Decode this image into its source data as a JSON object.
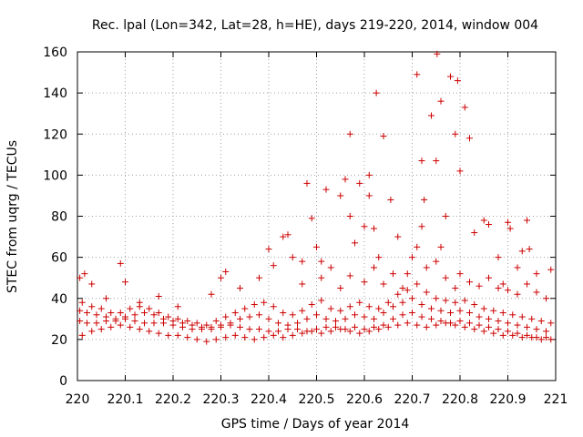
{
  "chart_data": {
    "type": "scatter",
    "title": "Rec. lpal (Lon=342, Lat=28, h=HE), days 219-220, 2014, window 004",
    "xlabel": "GPS time / Days of year 2014",
    "ylabel": "STEC from uqrg / TECUs",
    "xlim": [
      220,
      221
    ],
    "ylim": [
      0,
      160
    ],
    "xticks": [
      "220",
      "220.1",
      "220.2",
      "220.3",
      "220.4",
      "220.5",
      "220.6",
      "220.7",
      "220.8",
      "220.9",
      "221"
    ],
    "yticks": [
      "0",
      "20",
      "40",
      "60",
      "80",
      "100",
      "120",
      "140",
      "160"
    ],
    "grid": true,
    "marker": "+",
    "color": "#cc0000",
    "series": [
      {
        "points": [
          [
            220.005,
            29
          ],
          [
            220.02,
            28
          ],
          [
            220.04,
            28
          ],
          [
            220.06,
            29
          ],
          [
            220.08,
            29
          ],
          [
            220.1,
            30
          ],
          [
            220.12,
            29
          ],
          [
            220.14,
            28
          ],
          [
            220.16,
            28
          ],
          [
            220.18,
            28
          ],
          [
            220.2,
            27
          ],
          [
            220.22,
            26
          ],
          [
            220.24,
            25
          ],
          [
            220.26,
            25
          ],
          [
            220.28,
            26
          ],
          [
            220.3,
            26
          ],
          [
            220.32,
            27
          ],
          [
            220.34,
            26
          ],
          [
            220.36,
            25
          ],
          [
            220.38,
            25
          ],
          [
            220.4,
            24
          ],
          [
            220.42,
            24
          ],
          [
            220.44,
            25
          ],
          [
            220.46,
            25
          ],
          [
            220.48,
            24
          ],
          [
            220.5,
            25
          ],
          [
            220.52,
            26
          ],
          [
            220.54,
            26
          ],
          [
            220.56,
            25
          ],
          [
            220.58,
            26
          ],
          [
            220.6,
            25
          ],
          [
            220.62,
            26
          ],
          [
            220.64,
            27
          ],
          [
            220.66,
            30
          ],
          [
            220.68,
            32
          ],
          [
            220.7,
            33
          ],
          [
            220.72,
            31
          ],
          [
            220.74,
            30
          ],
          [
            220.76,
            29
          ],
          [
            220.78,
            28
          ],
          [
            220.8,
            29
          ],
          [
            220.82,
            28
          ],
          [
            220.84,
            27
          ],
          [
            220.86,
            26
          ],
          [
            220.88,
            25
          ],
          [
            220.9,
            24
          ],
          [
            220.92,
            23
          ],
          [
            220.94,
            22
          ],
          [
            220.96,
            21
          ],
          [
            220.98,
            21
          ],
          [
            220.005,
            34
          ],
          [
            220.02,
            33
          ],
          [
            220.04,
            32
          ],
          [
            220.06,
            31
          ],
          [
            220.08,
            30
          ],
          [
            220.1,
            31
          ],
          [
            220.12,
            32
          ],
          [
            220.14,
            33
          ],
          [
            220.16,
            32
          ],
          [
            220.18,
            30
          ],
          [
            220.2,
            29
          ],
          [
            220.22,
            28
          ],
          [
            220.24,
            27
          ],
          [
            220.26,
            26
          ],
          [
            220.28,
            25
          ],
          [
            220.3,
            27
          ],
          [
            220.32,
            28
          ],
          [
            220.34,
            30
          ],
          [
            220.36,
            31
          ],
          [
            220.38,
            32
          ],
          [
            220.4,
            30
          ],
          [
            220.42,
            28
          ],
          [
            220.44,
            27
          ],
          [
            220.46,
            28
          ],
          [
            220.48,
            30
          ],
          [
            220.5,
            32
          ],
          [
            220.52,
            30
          ],
          [
            220.54,
            29
          ],
          [
            220.56,
            30
          ],
          [
            220.58,
            32
          ],
          [
            220.6,
            31
          ],
          [
            220.62,
            30
          ],
          [
            220.64,
            33
          ],
          [
            220.66,
            36
          ],
          [
            220.68,
            38
          ],
          [
            220.7,
            40
          ],
          [
            220.72,
            37
          ],
          [
            220.74,
            35
          ],
          [
            220.76,
            34
          ],
          [
            220.78,
            33
          ],
          [
            220.8,
            34
          ],
          [
            220.82,
            33
          ],
          [
            220.84,
            31
          ],
          [
            220.86,
            30
          ],
          [
            220.88,
            29
          ],
          [
            220.9,
            28
          ],
          [
            220.92,
            27
          ],
          [
            220.94,
            26
          ],
          [
            220.96,
            25
          ],
          [
            220.98,
            24
          ],
          [
            220.01,
            38
          ],
          [
            220.03,
            36
          ],
          [
            220.05,
            35
          ],
          [
            220.07,
            33
          ],
          [
            220.09,
            33
          ],
          [
            220.11,
            35
          ],
          [
            220.13,
            36
          ],
          [
            220.15,
            35
          ],
          [
            220.17,
            33
          ],
          [
            220.19,
            31
          ],
          [
            220.21,
            30
          ],
          [
            220.23,
            29
          ],
          [
            220.25,
            28
          ],
          [
            220.27,
            27
          ],
          [
            220.29,
            29
          ],
          [
            220.31,
            31
          ],
          [
            220.33,
            33
          ],
          [
            220.35,
            35
          ],
          [
            220.37,
            37
          ],
          [
            220.39,
            38
          ],
          [
            220.41,
            36
          ],
          [
            220.43,
            33
          ],
          [
            220.45,
            32
          ],
          [
            220.47,
            34
          ],
          [
            220.49,
            37
          ],
          [
            220.51,
            39
          ],
          [
            220.53,
            35
          ],
          [
            220.55,
            34
          ],
          [
            220.57,
            36
          ],
          [
            220.59,
            38
          ],
          [
            220.61,
            36
          ],
          [
            220.63,
            35
          ],
          [
            220.65,
            38
          ],
          [
            220.67,
            42
          ],
          [
            220.69,
            44
          ],
          [
            220.71,
            47
          ],
          [
            220.73,
            43
          ],
          [
            220.75,
            40
          ],
          [
            220.77,
            39
          ],
          [
            220.79,
            38
          ],
          [
            220.81,
            39
          ],
          [
            220.83,
            37
          ],
          [
            220.85,
            35
          ],
          [
            220.87,
            34
          ],
          [
            220.89,
            33
          ],
          [
            220.91,
            32
          ],
          [
            220.93,
            31
          ],
          [
            220.95,
            30
          ],
          [
            220.97,
            29
          ],
          [
            220.99,
            28
          ],
          [
            220.01,
            22
          ],
          [
            220.03,
            24
          ],
          [
            220.05,
            25
          ],
          [
            220.07,
            26
          ],
          [
            220.09,
            27
          ],
          [
            220.11,
            26
          ],
          [
            220.13,
            25
          ],
          [
            220.15,
            24
          ],
          [
            220.17,
            23
          ],
          [
            220.19,
            22
          ],
          [
            220.21,
            22
          ],
          [
            220.23,
            21
          ],
          [
            220.25,
            20
          ],
          [
            220.27,
            19
          ],
          [
            220.29,
            20
          ],
          [
            220.31,
            21
          ],
          [
            220.33,
            22
          ],
          [
            220.35,
            21
          ],
          [
            220.37,
            20
          ],
          [
            220.39,
            21
          ],
          [
            220.41,
            22
          ],
          [
            220.43,
            21
          ],
          [
            220.45,
            22
          ],
          [
            220.47,
            23
          ],
          [
            220.49,
            24
          ],
          [
            220.51,
            23
          ],
          [
            220.53,
            24
          ],
          [
            220.55,
            25
          ],
          [
            220.57,
            24
          ],
          [
            220.59,
            23
          ],
          [
            220.61,
            24
          ],
          [
            220.63,
            25
          ],
          [
            220.65,
            26
          ],
          [
            220.67,
            27
          ],
          [
            220.69,
            28
          ],
          [
            220.71,
            27
          ],
          [
            220.73,
            26
          ],
          [
            220.75,
            27
          ],
          [
            220.77,
            28
          ],
          [
            220.79,
            27
          ],
          [
            220.81,
            26
          ],
          [
            220.83,
            25
          ],
          [
            220.85,
            24
          ],
          [
            220.87,
            23
          ],
          [
            220.89,
            22
          ],
          [
            220.91,
            22
          ],
          [
            220.93,
            21
          ],
          [
            220.95,
            21
          ],
          [
            220.97,
            20
          ],
          [
            220.99,
            20
          ],
          [
            220.005,
            50
          ],
          [
            220.015,
            52
          ],
          [
            220.03,
            47
          ],
          [
            220.06,
            40
          ],
          [
            220.09,
            57
          ],
          [
            220.1,
            48
          ],
          [
            220.13,
            38
          ],
          [
            220.17,
            41
          ],
          [
            220.21,
            36
          ],
          [
            220.28,
            42
          ],
          [
            220.3,
            50
          ],
          [
            220.31,
            53
          ],
          [
            220.34,
            45
          ],
          [
            220.38,
            50
          ],
          [
            220.4,
            64
          ],
          [
            220.41,
            56
          ],
          [
            220.43,
            70
          ],
          [
            220.44,
            71
          ],
          [
            220.45,
            60
          ],
          [
            220.47,
            58
          ],
          [
            220.48,
            96
          ],
          [
            220.49,
            79
          ],
          [
            220.5,
            65
          ],
          [
            220.51,
            58
          ],
          [
            220.52,
            93
          ],
          [
            220.53,
            55
          ],
          [
            220.55,
            90
          ],
          [
            220.56,
            98
          ],
          [
            220.57,
            80
          ],
          [
            220.57,
            120
          ],
          [
            220.58,
            67
          ],
          [
            220.59,
            96
          ],
          [
            220.6,
            75
          ],
          [
            220.61,
            100
          ],
          [
            220.61,
            90
          ],
          [
            220.62,
            74
          ],
          [
            220.625,
            140
          ],
          [
            220.63,
            60
          ],
          [
            220.64,
            119
          ],
          [
            220.655,
            88
          ],
          [
            220.67,
            70
          ],
          [
            220.69,
            52
          ],
          [
            220.71,
            149
          ],
          [
            220.72,
            107
          ],
          [
            220.725,
            88
          ],
          [
            220.74,
            129
          ],
          [
            220.75,
            107
          ],
          [
            220.752,
            159
          ],
          [
            220.76,
            136
          ],
          [
            220.77,
            80
          ],
          [
            220.78,
            148
          ],
          [
            220.79,
            120
          ],
          [
            220.795,
            146
          ],
          [
            220.8,
            102
          ],
          [
            220.81,
            133
          ],
          [
            220.82,
            118
          ],
          [
            220.83,
            72
          ],
          [
            220.85,
            78
          ],
          [
            220.86,
            76
          ],
          [
            220.88,
            60
          ],
          [
            220.89,
            47
          ],
          [
            220.9,
            77
          ],
          [
            220.905,
            74
          ],
          [
            220.92,
            55
          ],
          [
            220.93,
            63
          ],
          [
            220.94,
            78
          ],
          [
            220.945,
            64
          ],
          [
            220.96,
            52
          ],
          [
            220.98,
            40
          ],
          [
            220.99,
            54
          ],
          [
            220.47,
            47
          ],
          [
            220.51,
            50
          ],
          [
            220.55,
            45
          ],
          [
            220.57,
            51
          ],
          [
            220.6,
            48
          ],
          [
            220.62,
            55
          ],
          [
            220.64,
            47
          ],
          [
            220.66,
            52
          ],
          [
            220.68,
            45
          ],
          [
            220.7,
            60
          ],
          [
            220.71,
            65
          ],
          [
            220.72,
            75
          ],
          [
            220.73,
            55
          ],
          [
            220.75,
            58
          ],
          [
            220.76,
            65
          ],
          [
            220.77,
            50
          ],
          [
            220.79,
            45
          ],
          [
            220.8,
            52
          ],
          [
            220.82,
            48
          ],
          [
            220.84,
            46
          ],
          [
            220.86,
            50
          ],
          [
            220.88,
            45
          ],
          [
            220.9,
            44
          ],
          [
            220.92,
            42
          ],
          [
            220.94,
            47
          ],
          [
            220.96,
            43
          ]
        ]
      }
    ]
  }
}
